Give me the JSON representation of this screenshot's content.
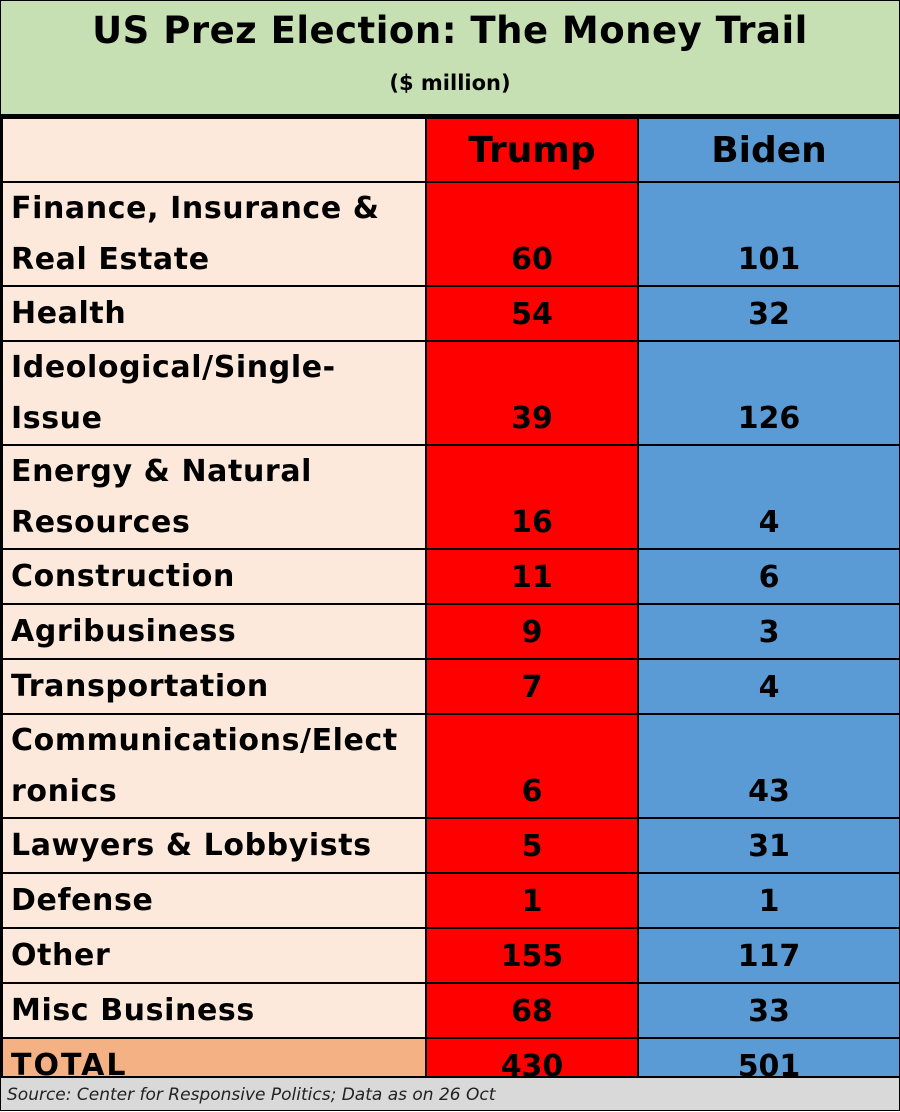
{
  "title": "US Prez Election: The Money Trail",
  "subtitle": "($ million)",
  "headers": {
    "label": "",
    "trump": "Trump",
    "biden": "Biden"
  },
  "colors": {
    "title_bg": "#c6e0b4",
    "label_bg": "#fde9db",
    "trump": "#ff0000",
    "biden": "#5b9bd5",
    "total_bg": "#f4b183",
    "source_bg": "#d9d9d9"
  },
  "rows": [
    {
      "label_lines": [
        "Finance, Insurance &",
        "Real Estate"
      ],
      "trump": "60",
      "biden": "101"
    },
    {
      "label_lines": [
        "Health"
      ],
      "trump": "54",
      "biden": "32"
    },
    {
      "label_lines": [
        "Ideological/Single-",
        "Issue"
      ],
      "trump": "39",
      "biden": "126"
    },
    {
      "label_lines": [
        "Energy & Natural",
        "Resources"
      ],
      "trump": "16",
      "biden": "4"
    },
    {
      "label_lines": [
        "Construction"
      ],
      "trump": "11",
      "biden": "6"
    },
    {
      "label_lines": [
        "Agribusiness"
      ],
      "trump": "9",
      "biden": "3"
    },
    {
      "label_lines": [
        "Transportation"
      ],
      "trump": "7",
      "biden": "4"
    },
    {
      "label_lines": [
        "Communications/Elect",
        "ronics"
      ],
      "trump": "6",
      "biden": "43"
    },
    {
      "label_lines": [
        "Lawyers & Lobbyists"
      ],
      "trump": "5",
      "biden": "31"
    },
    {
      "label_lines": [
        "Defense"
      ],
      "trump": "1",
      "biden": "1"
    },
    {
      "label_lines": [
        "Other"
      ],
      "trump": "155",
      "biden": "117"
    },
    {
      "label_lines": [
        "Misc Business"
      ],
      "trump": "68",
      "biden": "33"
    }
  ],
  "total": {
    "label": "TOTAL",
    "trump": "430",
    "biden": "501"
  },
  "source": "Source: Center for Responsive Politics; Data as on 26 Oct",
  "chart_data": {
    "type": "table",
    "title": "US Prez Election: The Money Trail",
    "subtitle": "($ million)",
    "columns": [
      "",
      "Trump",
      "Biden"
    ],
    "categories": [
      "Finance, Insurance & Real Estate",
      "Health",
      "Ideological/Single-Issue",
      "Energy & Natural Resources",
      "Construction",
      "Agribusiness",
      "Transportation",
      "Communications/Electronics",
      "Lawyers & Lobbyists",
      "Defense",
      "Other",
      "Misc Business",
      "TOTAL"
    ],
    "series": [
      {
        "name": "Trump",
        "values": [
          60,
          54,
          39,
          16,
          11,
          9,
          7,
          6,
          5,
          1,
          155,
          68,
          430
        ]
      },
      {
        "name": "Biden",
        "values": [
          101,
          32,
          126,
          4,
          6,
          3,
          4,
          43,
          31,
          1,
          117,
          33,
          501
        ]
      }
    ]
  }
}
